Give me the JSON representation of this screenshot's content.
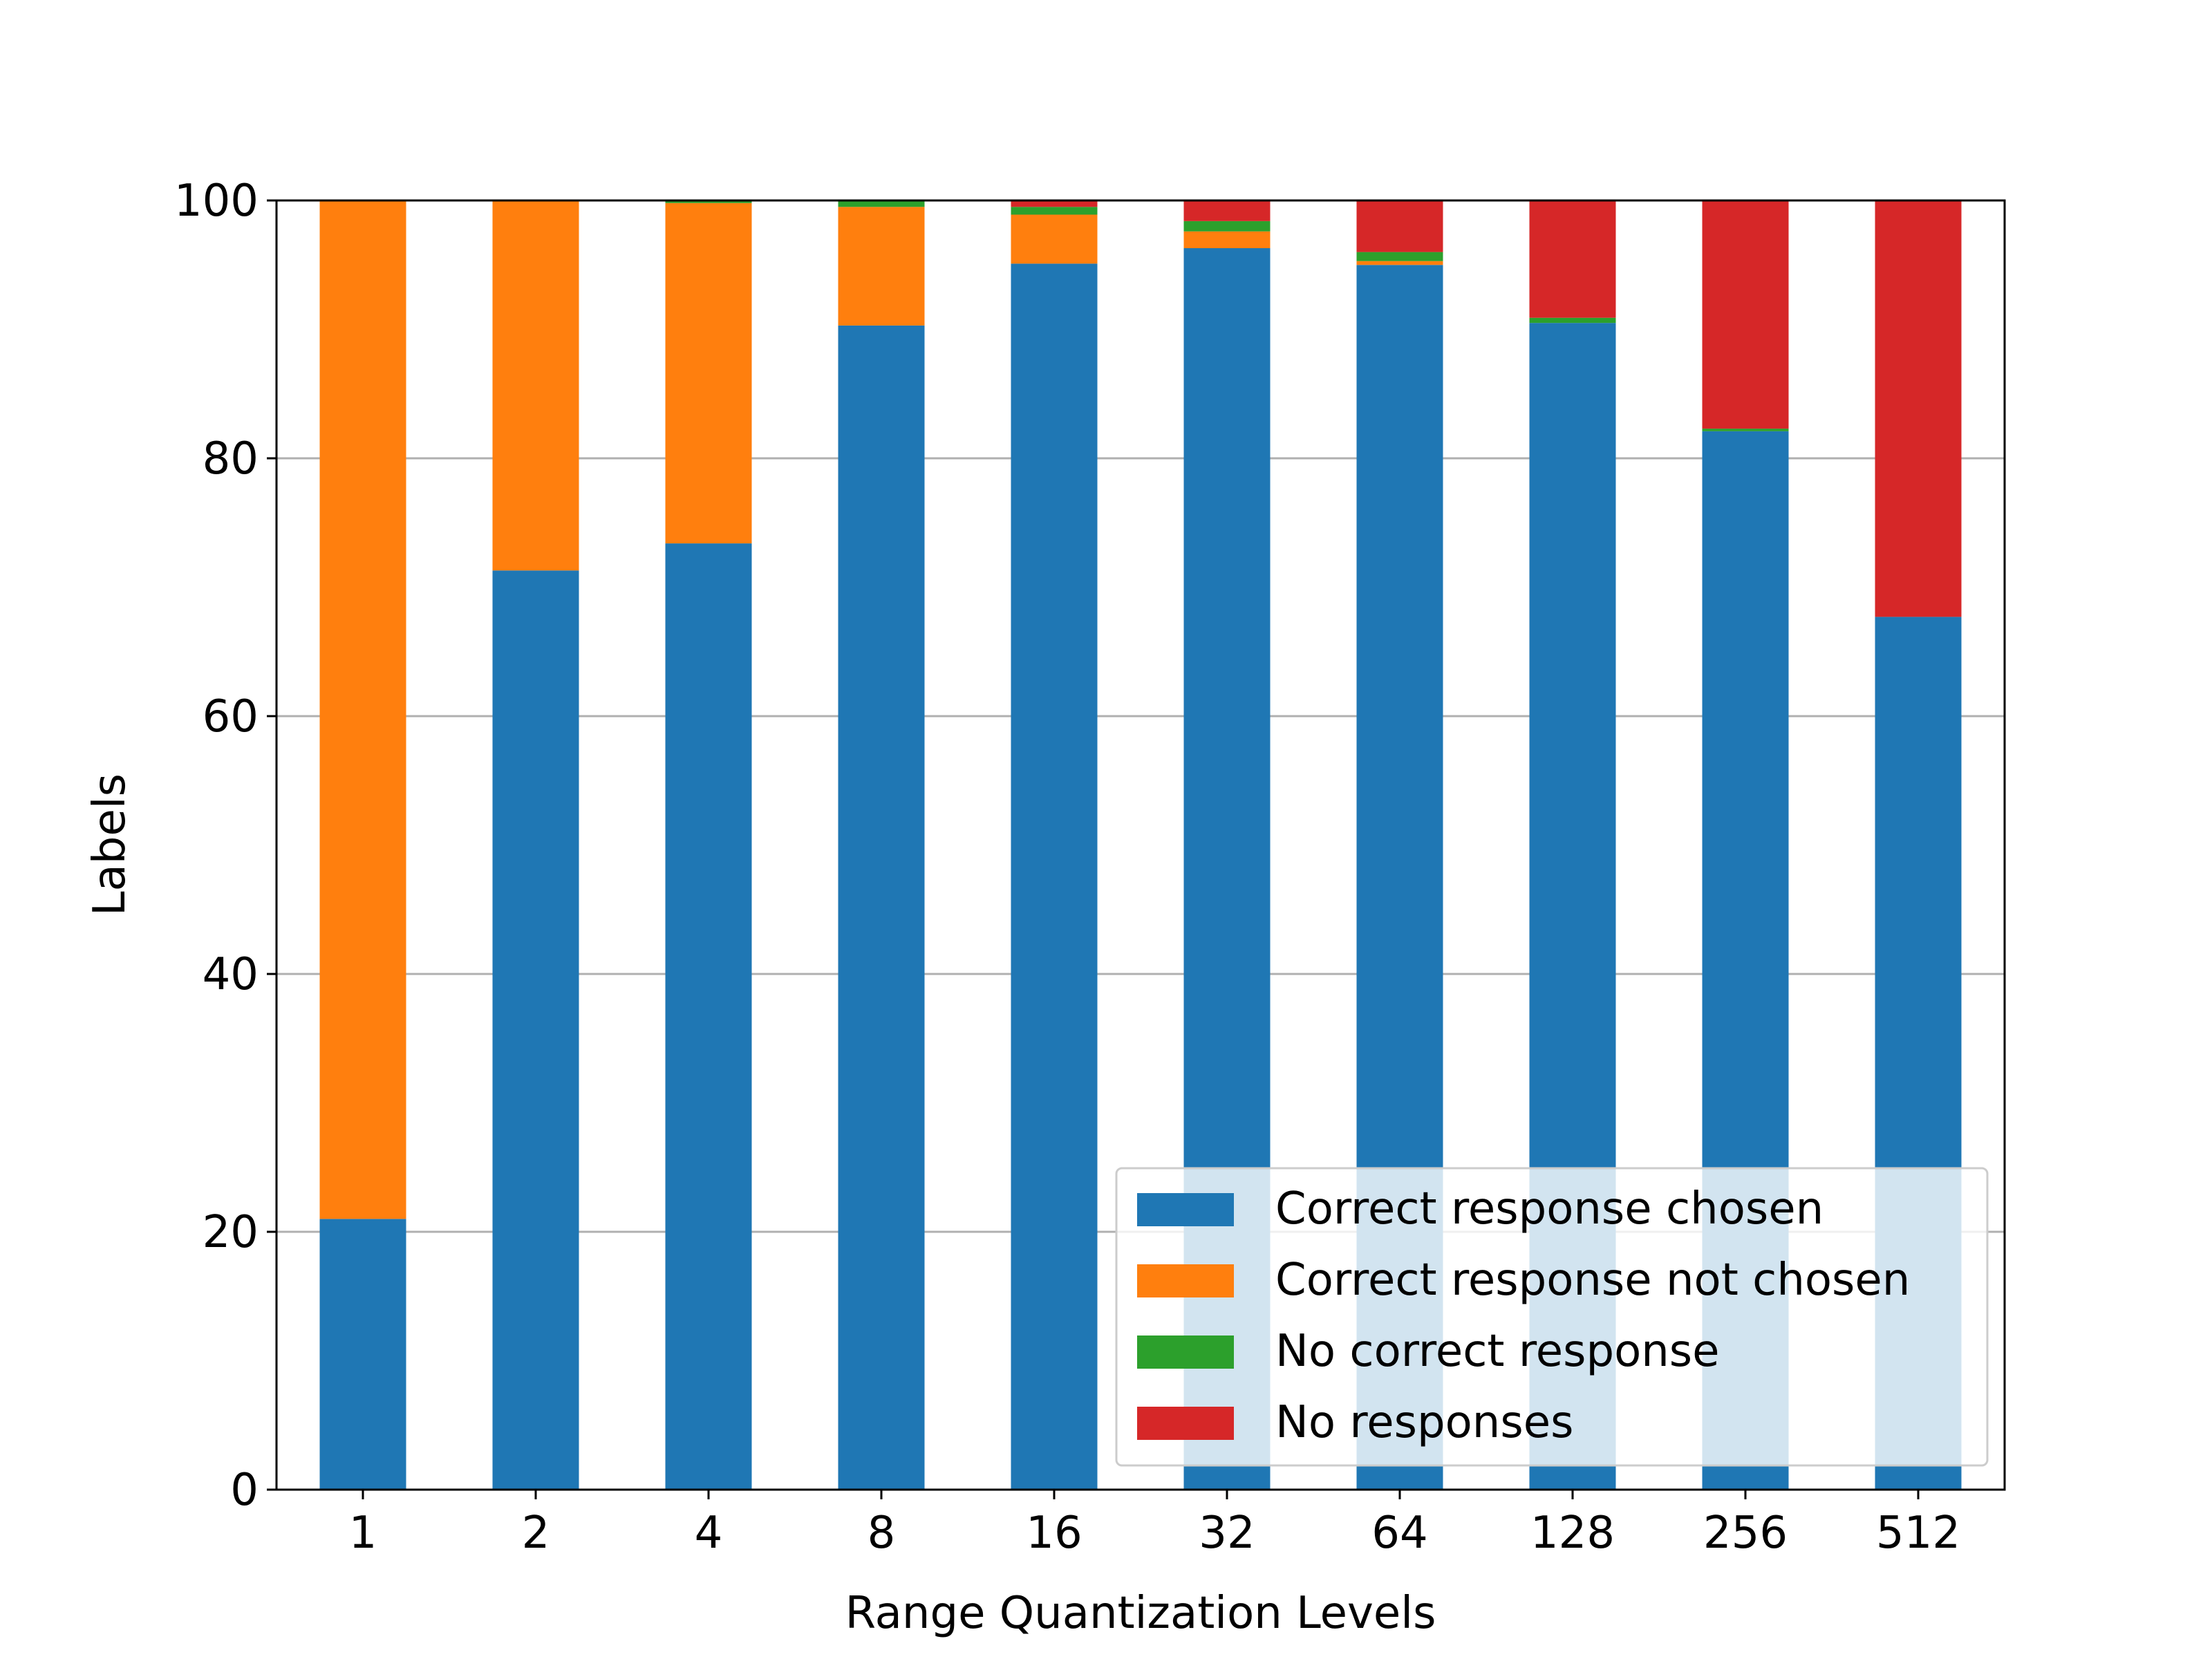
{
  "chart_data": {
    "type": "bar",
    "stacked": true,
    "title": "",
    "xlabel": "Range Quantization Levels",
    "ylabel": "Labels",
    "categories": [
      "1",
      "2",
      "4",
      "8",
      "16",
      "32",
      "64",
      "128",
      "256",
      "512"
    ],
    "ylim": [
      0,
      100
    ],
    "yticks": [
      "0",
      "20",
      "40",
      "60",
      "80",
      "100"
    ],
    "grid": "y",
    "legend_position": "lower-right",
    "series": [
      {
        "name": "Correct response chosen",
        "color": "#1f77b4",
        "values": [
          21.0,
          71.3,
          73.4,
          90.3,
          95.1,
          96.3,
          95.0,
          90.5,
          82.1,
          67.7
        ]
      },
      {
        "name": "Correct response not chosen",
        "color": "#ff7f0e",
        "values": [
          79.0,
          28.7,
          26.4,
          9.2,
          3.8,
          1.3,
          0.3,
          0.0,
          0.0,
          0.0
        ]
      },
      {
        "name": "No correct response",
        "color": "#2ca02c",
        "values": [
          0.0,
          0.0,
          0.2,
          0.5,
          0.6,
          0.8,
          0.7,
          0.4,
          0.2,
          0.0
        ]
      },
      {
        "name": "No responses",
        "color": "#d62728",
        "values": [
          0.0,
          0.0,
          0.0,
          0.0,
          0.5,
          1.6,
          4.0,
          9.1,
          17.7,
          32.3
        ]
      }
    ]
  }
}
